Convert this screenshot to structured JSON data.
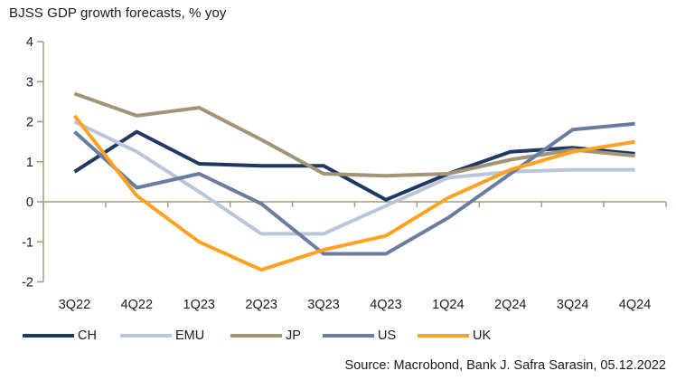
{
  "title": "BJSS GDP growth forecasts, % yoy",
  "source": "Source: Macrobond, Bank J. Safra Sarasin, 05.12.2022",
  "colors": {
    "axis": "#a39d74",
    "text": "#1a1a24",
    "background": "#ffffff"
  },
  "chart_data": {
    "type": "line",
    "title": "BJSS GDP growth forecasts, % yoy",
    "xlabel": "",
    "ylabel": "",
    "ylim": [
      -2,
      4
    ],
    "yticks": [
      4,
      3,
      2,
      1,
      0,
      -1,
      -2
    ],
    "grid": "zero-axis-line-only",
    "legend_position": "bottom",
    "categories": [
      "3Q22",
      "4Q22",
      "1Q23",
      "2Q23",
      "3Q23",
      "4Q23",
      "1Q24",
      "2Q24",
      "3Q24",
      "4Q24"
    ],
    "series": [
      {
        "name": "CH",
        "color": "#1f3864",
        "values": [
          0.75,
          1.75,
          0.95,
          0.9,
          0.9,
          0.05,
          0.7,
          1.25,
          1.35,
          1.2
        ]
      },
      {
        "name": "EMU",
        "color": "#b9c5da",
        "values": [
          2.0,
          1.25,
          0.25,
          -0.8,
          -0.8,
          -0.1,
          0.6,
          0.75,
          0.8,
          0.8
        ]
      },
      {
        "name": "JP",
        "color": "#a39478",
        "values": [
          2.7,
          2.15,
          2.35,
          1.55,
          0.7,
          0.65,
          0.7,
          1.05,
          1.3,
          1.15
        ]
      },
      {
        "name": "US",
        "color": "#6b7ca1",
        "values": [
          1.75,
          0.35,
          0.7,
          -0.05,
          -1.3,
          -1.3,
          -0.4,
          0.7,
          1.8,
          1.95
        ]
      },
      {
        "name": "UK",
        "color": "#ffa121",
        "values": [
          2.15,
          0.15,
          -1.0,
          -1.7,
          -1.2,
          -0.85,
          0.1,
          0.8,
          1.25,
          1.5
        ]
      }
    ]
  }
}
